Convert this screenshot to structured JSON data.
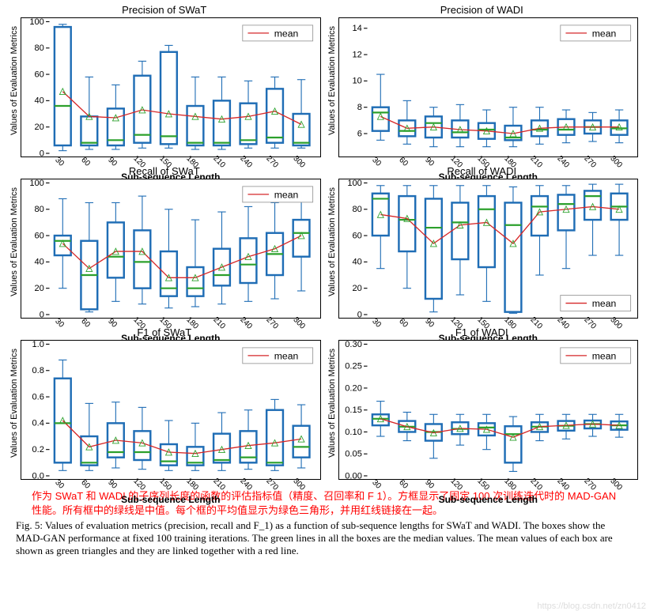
{
  "layout": {
    "rows": 3,
    "cols": 2,
    "ylabel": "Values of Evaluation Metrics",
    "xlabel": "Sub-sequence Length",
    "categories": [
      "30",
      "60",
      "90",
      "120",
      "150",
      "180",
      "210",
      "240",
      "270",
      "300"
    ],
    "box_color": "#1f6db5",
    "median_color": "#2ca02c",
    "whisker_color": "#1f6db5",
    "mean_line_color": "#d62728",
    "mean_marker_color": "#2ca02c",
    "background": "#ffffff",
    "legend_label": "mean",
    "title_fontsize": 13,
    "label_fontsize": 12,
    "tick_fontsize": 10
  },
  "panels": [
    {
      "id": "prec-swat",
      "title": "Precision of SWaT",
      "ylim": [
        0,
        100
      ],
      "yticks": [
        0,
        20,
        40,
        60,
        80,
        100
      ],
      "legend_pos": "top-right",
      "boxes": [
        {
          "q1": 6,
          "med": 36,
          "q3": 96,
          "lo": 2,
          "hi": 98,
          "mean": 47
        },
        {
          "q1": 6,
          "med": 8,
          "q3": 28,
          "lo": 3,
          "hi": 58,
          "mean": 28
        },
        {
          "q1": 6,
          "med": 10,
          "q3": 34,
          "lo": 3,
          "hi": 52,
          "mean": 27
        },
        {
          "q1": 8,
          "med": 14,
          "q3": 59,
          "lo": 4,
          "hi": 70,
          "mean": 33
        },
        {
          "q1": 7,
          "med": 13,
          "q3": 77,
          "lo": 4,
          "hi": 82,
          "mean": 30
        },
        {
          "q1": 6,
          "med": 8,
          "q3": 36,
          "lo": 3,
          "hi": 58,
          "mean": 28
        },
        {
          "q1": 6,
          "med": 8,
          "q3": 40,
          "lo": 3,
          "hi": 58,
          "mean": 26
        },
        {
          "q1": 7,
          "med": 10,
          "q3": 38,
          "lo": 4,
          "hi": 55,
          "mean": 28
        },
        {
          "q1": 8,
          "med": 12,
          "q3": 49,
          "lo": 4,
          "hi": 58,
          "mean": 32
        },
        {
          "q1": 6,
          "med": 8,
          "q3": 30,
          "lo": 4,
          "hi": 56,
          "mean": 22
        }
      ]
    },
    {
      "id": "prec-wadi",
      "title": "Precision of WADI",
      "ylim": [
        4.5,
        14.5
      ],
      "yticks": [
        6,
        8,
        10,
        12,
        14
      ],
      "legend_pos": "top-right",
      "boxes": [
        {
          "q1": 6.2,
          "med": 7.6,
          "q3": 8.0,
          "lo": 5.5,
          "hi": 10.5,
          "mean": 7.3
        },
        {
          "q1": 5.8,
          "med": 6.2,
          "q3": 7.0,
          "lo": 5.2,
          "hi": 8.5,
          "mean": 6.4
        },
        {
          "q1": 5.7,
          "med": 6.8,
          "q3": 7.3,
          "lo": 5.0,
          "hi": 8.0,
          "mean": 6.5
        },
        {
          "q1": 5.7,
          "med": 6.1,
          "q3": 7.0,
          "lo": 5.0,
          "hi": 8.2,
          "mean": 6.3
        },
        {
          "q1": 5.6,
          "med": 6.3,
          "q3": 6.8,
          "lo": 5.0,
          "hi": 7.8,
          "mean": 6.2
        },
        {
          "q1": 5.5,
          "med": 5.7,
          "q3": 6.6,
          "lo": 5.0,
          "hi": 8.0,
          "mean": 6.0
        },
        {
          "q1": 5.8,
          "med": 6.3,
          "q3": 7.0,
          "lo": 5.2,
          "hi": 8.0,
          "mean": 6.4
        },
        {
          "q1": 5.9,
          "med": 6.3,
          "q3": 7.1,
          "lo": 5.3,
          "hi": 7.8,
          "mean": 6.5
        },
        {
          "q1": 6.0,
          "med": 6.5,
          "q3": 7.0,
          "lo": 5.4,
          "hi": 7.6,
          "mean": 6.5
        },
        {
          "q1": 5.9,
          "med": 6.4,
          "q3": 7.0,
          "lo": 5.3,
          "hi": 7.8,
          "mean": 6.5
        }
      ]
    },
    {
      "id": "recall-swat",
      "title": "Recall of SWaT",
      "ylim": [
        0,
        100
      ],
      "yticks": [
        0,
        20,
        40,
        60,
        80,
        100
      ],
      "legend_pos": "top-right",
      "boxes": [
        {
          "q1": 45,
          "med": 56,
          "q3": 60,
          "lo": 20,
          "hi": 88,
          "mean": 54
        },
        {
          "q1": 4,
          "med": 30,
          "q3": 56,
          "lo": 2,
          "hi": 85,
          "mean": 35
        },
        {
          "q1": 28,
          "med": 44,
          "q3": 70,
          "lo": 10,
          "hi": 85,
          "mean": 48
        },
        {
          "q1": 20,
          "med": 40,
          "q3": 64,
          "lo": 8,
          "hi": 90,
          "mean": 48
        },
        {
          "q1": 14,
          "med": 20,
          "q3": 48,
          "lo": 5,
          "hi": 80,
          "mean": 28
        },
        {
          "q1": 14,
          "med": 20,
          "q3": 36,
          "lo": 6,
          "hi": 72,
          "mean": 28
        },
        {
          "q1": 22,
          "med": 30,
          "q3": 50,
          "lo": 8,
          "hi": 78,
          "mean": 36
        },
        {
          "q1": 24,
          "med": 38,
          "q3": 58,
          "lo": 10,
          "hi": 82,
          "mean": 44
        },
        {
          "q1": 30,
          "med": 46,
          "q3": 62,
          "lo": 12,
          "hi": 85,
          "mean": 50
        },
        {
          "q1": 44,
          "med": 62,
          "q3": 72,
          "lo": 18,
          "hi": 90,
          "mean": 60
        }
      ]
    },
    {
      "id": "recall-wadi",
      "title": "Recall of WADI",
      "ylim": [
        0,
        100
      ],
      "yticks": [
        0,
        20,
        40,
        60,
        80,
        100
      ],
      "legend_pos": "bottom-right",
      "boxes": [
        {
          "q1": 60,
          "med": 88,
          "q3": 92,
          "lo": 35,
          "hi": 98,
          "mean": 76
        },
        {
          "q1": 48,
          "med": 72,
          "q3": 90,
          "lo": 20,
          "hi": 98,
          "mean": 73
        },
        {
          "q1": 12,
          "med": 66,
          "q3": 88,
          "lo": 2,
          "hi": 98,
          "mean": 54
        },
        {
          "q1": 42,
          "med": 70,
          "q3": 85,
          "lo": 15,
          "hi": 98,
          "mean": 68
        },
        {
          "q1": 36,
          "med": 80,
          "q3": 90,
          "lo": 10,
          "hi": 98,
          "mean": 70
        },
        {
          "q1": 2,
          "med": 68,
          "q3": 85,
          "lo": 1,
          "hi": 97,
          "mean": 54
        },
        {
          "q1": 60,
          "med": 82,
          "q3": 90,
          "lo": 30,
          "hi": 98,
          "mean": 78
        },
        {
          "q1": 64,
          "med": 84,
          "q3": 91,
          "lo": 35,
          "hi": 98,
          "mean": 80
        },
        {
          "q1": 72,
          "med": 90,
          "q3": 94,
          "lo": 45,
          "hi": 99,
          "mean": 82
        },
        {
          "q1": 72,
          "med": 82,
          "q3": 92,
          "lo": 45,
          "hi": 99,
          "mean": 80
        }
      ]
    },
    {
      "id": "f1-swat",
      "title": "F1 of SWaT",
      "ylim": [
        0,
        1
      ],
      "yticks": [
        0.0,
        0.2,
        0.4,
        0.6,
        0.8,
        1.0
      ],
      "legend_pos": "top-right",
      "boxes": [
        {
          "q1": 0.1,
          "med": 0.4,
          "q3": 0.74,
          "lo": 0.04,
          "hi": 0.88,
          "mean": 0.42
        },
        {
          "q1": 0.08,
          "med": 0.1,
          "q3": 0.3,
          "lo": 0.04,
          "hi": 0.55,
          "mean": 0.22
        },
        {
          "q1": 0.14,
          "med": 0.18,
          "q3": 0.4,
          "lo": 0.06,
          "hi": 0.56,
          "mean": 0.27
        },
        {
          "q1": 0.12,
          "med": 0.18,
          "q3": 0.34,
          "lo": 0.05,
          "hi": 0.52,
          "mean": 0.25
        },
        {
          "q1": 0.08,
          "med": 0.11,
          "q3": 0.24,
          "lo": 0.04,
          "hi": 0.42,
          "mean": 0.18
        },
        {
          "q1": 0.08,
          "med": 0.1,
          "q3": 0.22,
          "lo": 0.04,
          "hi": 0.4,
          "mean": 0.17
        },
        {
          "q1": 0.1,
          "med": 0.12,
          "q3": 0.32,
          "lo": 0.04,
          "hi": 0.48,
          "mean": 0.2
        },
        {
          "q1": 0.1,
          "med": 0.14,
          "q3": 0.34,
          "lo": 0.05,
          "hi": 0.5,
          "mean": 0.23
        },
        {
          "q1": 0.08,
          "med": 0.1,
          "q3": 0.5,
          "lo": 0.04,
          "hi": 0.58,
          "mean": 0.25
        },
        {
          "q1": 0.14,
          "med": 0.22,
          "q3": 0.38,
          "lo": 0.06,
          "hi": 0.54,
          "mean": 0.28
        }
      ]
    },
    {
      "id": "f1-wadi",
      "title": "F1 of WADI",
      "ylim": [
        0,
        0.3
      ],
      "yticks": [
        0.0,
        0.05,
        0.1,
        0.15,
        0.2,
        0.25,
        0.3
      ],
      "legend_pos": "top-right",
      "boxes": [
        {
          "q1": 0.115,
          "med": 0.13,
          "q3": 0.14,
          "lo": 0.09,
          "hi": 0.17,
          "mean": 0.13
        },
        {
          "q1": 0.1,
          "med": 0.112,
          "q3": 0.125,
          "lo": 0.08,
          "hi": 0.145,
          "mean": 0.112
        },
        {
          "q1": 0.08,
          "med": 0.1,
          "q3": 0.118,
          "lo": 0.04,
          "hi": 0.14,
          "mean": 0.098
        },
        {
          "q1": 0.095,
          "med": 0.107,
          "q3": 0.122,
          "lo": 0.07,
          "hi": 0.14,
          "mean": 0.108
        },
        {
          "q1": 0.092,
          "med": 0.11,
          "q3": 0.12,
          "lo": 0.06,
          "hi": 0.14,
          "mean": 0.106
        },
        {
          "q1": 0.03,
          "med": 0.095,
          "q3": 0.113,
          "lo": 0.01,
          "hi": 0.135,
          "mean": 0.088
        },
        {
          "q1": 0.1,
          "med": 0.112,
          "q3": 0.122,
          "lo": 0.08,
          "hi": 0.14,
          "mean": 0.112
        },
        {
          "q1": 0.103,
          "med": 0.114,
          "q3": 0.125,
          "lo": 0.084,
          "hi": 0.14,
          "mean": 0.115
        },
        {
          "q1": 0.108,
          "med": 0.118,
          "q3": 0.126,
          "lo": 0.09,
          "hi": 0.14,
          "mean": 0.118
        },
        {
          "q1": 0.105,
          "med": 0.115,
          "q3": 0.124,
          "lo": 0.088,
          "hi": 0.14,
          "mean": 0.115
        }
      ]
    }
  ],
  "caption_zh": "作为 SWaT 和 WADI 的子序列长度的函数的评估指标值（精度、召回率和 F 1）。方框显示了固定 100 次训练迭代时的 MAD-GAN 性能。所有框中的绿线是中值。每个框的平均值显示为绿色三角形，并用红线链接在一起。",
  "caption_en": "Fig. 5: Values of evaluation metrics (precision, recall and F_1) as a function of sub-sequence lengths for SWaT and WADI. The boxes show the MAD-GAN performance at fixed 100 training iterations. The green lines in all the boxes are the median values. The mean values of each box are shown as green triangles and they are linked together with a red line.",
  "watermark": "https://blog.csdn.net/zn0412"
}
